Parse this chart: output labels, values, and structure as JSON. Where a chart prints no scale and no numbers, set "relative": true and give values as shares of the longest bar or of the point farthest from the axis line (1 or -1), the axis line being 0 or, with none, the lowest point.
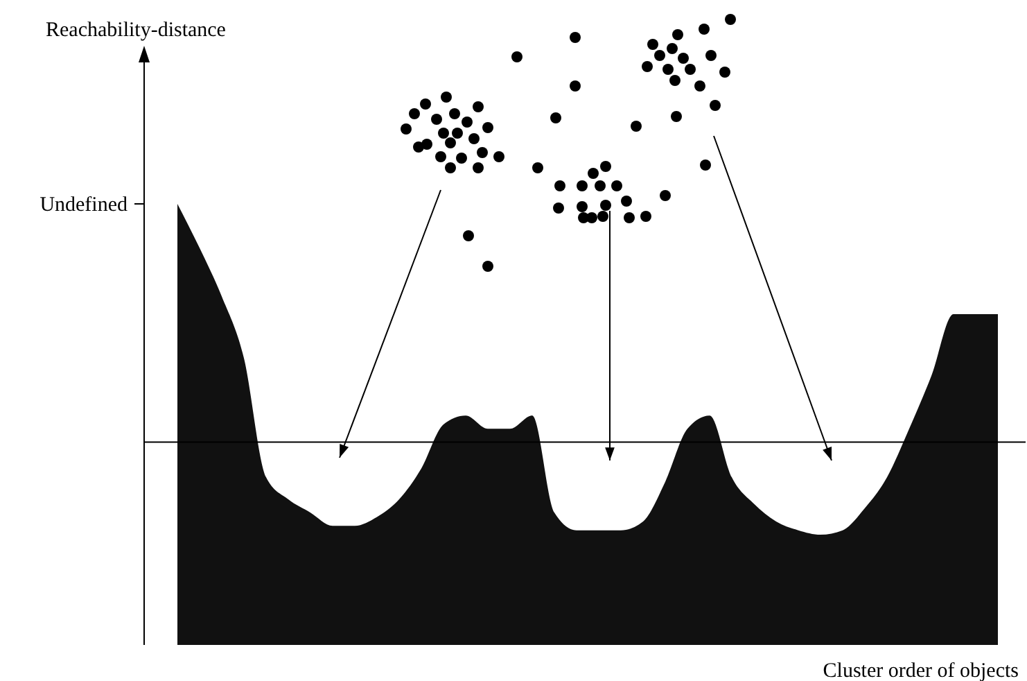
{
  "chart_data": {
    "type": "area",
    "xlabel": "Cluster order of objects",
    "annotations": [
      "Reachability-distance",
      "Undefined"
    ],
    "categories": [
      null,
      null,
      null,
      null,
      null,
      null,
      null,
      null,
      null,
      null,
      null,
      null,
      null,
      null,
      null,
      null,
      null,
      null,
      null,
      null,
      null,
      null,
      null,
      null,
      null,
      null,
      null,
      null,
      null,
      null,
      null,
      null,
      null,
      null,
      null,
      null,
      null,
      null
    ],
    "values": [
      1.0,
      0.9,
      0.79,
      0.65,
      0.38,
      0.33,
      0.3,
      0.27,
      0.27,
      0.29,
      0.33,
      0.4,
      0.5,
      0.52,
      0.49,
      0.49,
      0.52,
      0.3,
      0.26,
      0.26,
      0.26,
      0.28,
      0.37,
      0.49,
      0.52,
      0.38,
      0.32,
      0.28,
      0.26,
      0.25,
      0.26,
      0.31,
      0.38,
      0.49,
      0.61,
      0.75,
      0.75,
      0.75
    ],
    "color": "#111111",
    "relative": true,
    "ref_lines": [
      {
        "axis": "y",
        "value": 0.46,
        "color": "#000000"
      }
    ]
  }
}
